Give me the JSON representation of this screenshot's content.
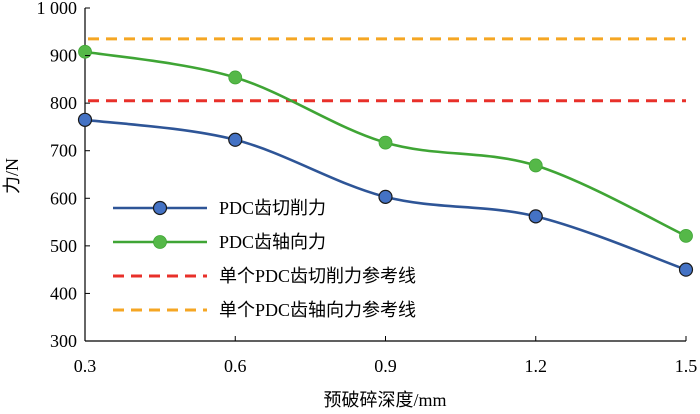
{
  "chart_data": {
    "type": "line",
    "title": "",
    "xlabel": "预破碎深度/mm",
    "ylabel": "力/N",
    "x": [
      0.3,
      0.6,
      0.9,
      1.2,
      1.5
    ],
    "x_tick_labels": [
      "0.3",
      "0.6",
      "0.9",
      "1.2",
      "1.5"
    ],
    "xlim": [
      0.3,
      1.5
    ],
    "ylim": [
      300,
      1000
    ],
    "y_ticks": [
      300,
      400,
      500,
      600,
      700,
      800,
      900,
      1000
    ],
    "y_tick_labels": [
      "300",
      "400",
      "500",
      "600",
      "700",
      "800",
      "900",
      "1 000"
    ],
    "grid": false,
    "legend_position": "left",
    "series": [
      {
        "name": "PDC齿切削力",
        "values": [
          765,
          723,
          603,
          562,
          450
        ],
        "color": "#2e5597",
        "marker_color": "#4472c4",
        "style": "solid",
        "marker": "circle"
      },
      {
        "name": "PDC齿轴向力",
        "values": [
          908,
          854,
          717,
          669,
          521
        ],
        "color": "#3fa535",
        "marker_color": "#55b848",
        "style": "solid",
        "marker": "circle"
      }
    ],
    "reference_lines": [
      {
        "name": "单个PDC齿切削力参考线",
        "value": 805,
        "color": "#e8302a",
        "style": "dashed"
      },
      {
        "name": "单个PDC齿轴向力参考线",
        "value": 935,
        "color": "#f5a623",
        "style": "dashed"
      }
    ]
  }
}
